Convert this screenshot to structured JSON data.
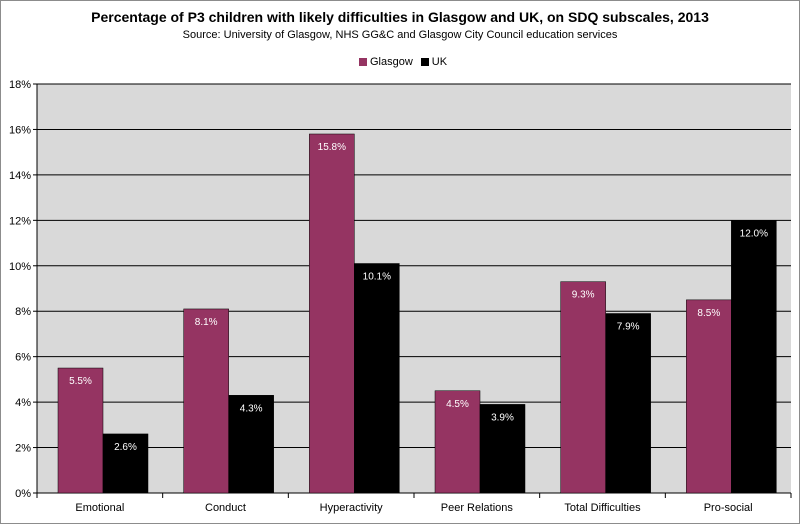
{
  "chart_data": {
    "type": "bar",
    "title": "Percentage of P3 children with likely difficulties in Glasgow and UK, on SDQ subscales, 2013",
    "subtitle": "Source: University of Glasgow, NHS GG&C and Glasgow City Council education services",
    "xlabel": "",
    "ylabel": "",
    "ylim": [
      0,
      18
    ],
    "yticks": [
      0,
      2,
      4,
      6,
      8,
      10,
      12,
      14,
      16,
      18
    ],
    "ytick_labels": [
      "0%",
      "2%",
      "4%",
      "6%",
      "8%",
      "10%",
      "12%",
      "14%",
      "16%",
      "18%"
    ],
    "grid": true,
    "legend_position": "top-center",
    "categories": [
      "Emotional",
      "Conduct",
      "Hyperactivity",
      "Peer Relations",
      "Total Difficulties",
      "Pro-social"
    ],
    "series": [
      {
        "name": "Glasgow",
        "color": "#953462",
        "values": [
          5.5,
          8.1,
          15.8,
          4.5,
          9.3,
          8.5
        ],
        "labels": [
          "5.5%",
          "8.1%",
          "15.8%",
          "4.5%",
          "9.3%",
          "8.5%"
        ]
      },
      {
        "name": "UK",
        "color": "#000000",
        "values": [
          2.6,
          4.3,
          10.1,
          3.9,
          7.9,
          12.0
        ],
        "labels": [
          "2.6%",
          "4.3%",
          "10.1%",
          "3.9%",
          "7.9%",
          "12.0%"
        ]
      }
    ],
    "plot_background": "#d9d9d9"
  }
}
